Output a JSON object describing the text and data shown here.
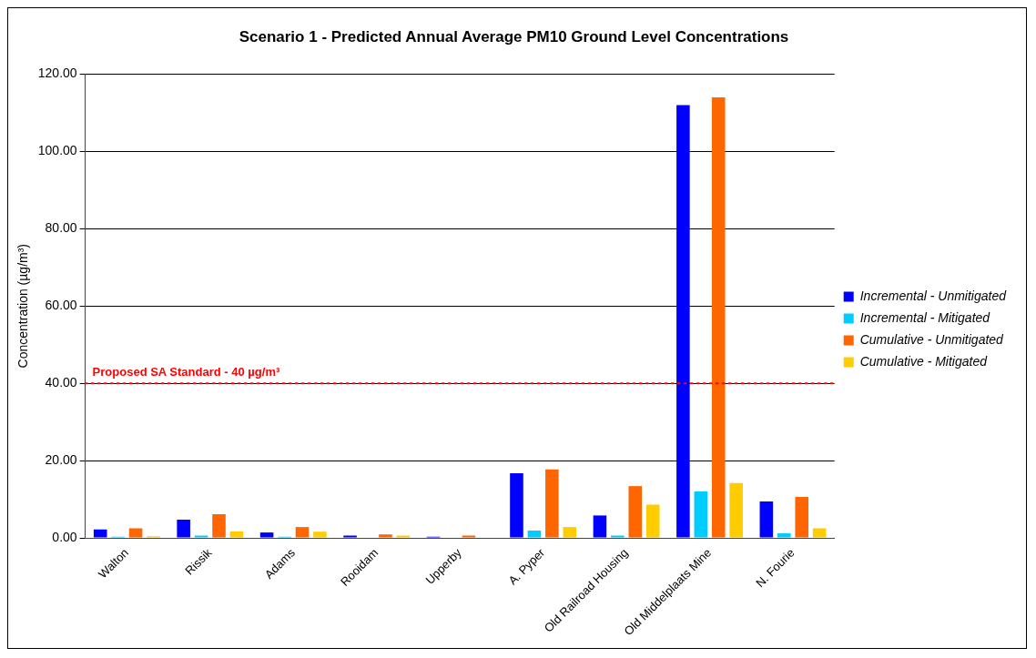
{
  "chart_data": {
    "type": "bar",
    "title": "Scenario 1 - Predicted Annual Average PM10 Ground Level Concentrations",
    "ylabel": "Concentration (µg/m³)",
    "categories": [
      "Walton",
      "Rissik",
      "Adams",
      "Rooidam",
      "Upperby",
      "A. Pyper",
      "Old Railroad Housing",
      "Old Middelplaats Mine",
      "N. Fourie"
    ],
    "series": [
      {
        "name": "Incremental - Unmitigated",
        "color": "#0000ff",
        "values": [
          2.2,
          4.7,
          1.4,
          0.6,
          0.3,
          16.7,
          5.8,
          112,
          9.4
        ]
      },
      {
        "name": "Incremental - Mitigated",
        "color": "#00ccff",
        "values": [
          0.3,
          0.6,
          0.3,
          null,
          null,
          1.9,
          0.6,
          12.0,
          1.2
        ]
      },
      {
        "name": "Cumulative - Unmitigated",
        "color": "#ff6600",
        "values": [
          2.5,
          6.1,
          2.8,
          0.9,
          0.6,
          17.7,
          13.4,
          114,
          10.6
        ]
      },
      {
        "name": "Cumulative - Mitigated",
        "color": "#ffcc00",
        "values": [
          0.4,
          1.7,
          1.6,
          0.6,
          null,
          2.8,
          8.6,
          14.2,
          2.5
        ]
      }
    ],
    "ylim": [
      0,
      120
    ],
    "yticks": [
      {
        "value": 0,
        "label": "0.00"
      },
      {
        "value": 20,
        "label": "20.00"
      },
      {
        "value": 40,
        "label": "40.00"
      },
      {
        "value": 60,
        "label": "60.00"
      },
      {
        "value": 80,
        "label": "80.00"
      },
      {
        "value": 100,
        "label": "100.00"
      },
      {
        "value": 120,
        "label": "120.00"
      }
    ],
    "ref_lines": [
      {
        "axis": "y",
        "value": 40,
        "label": "Proposed SA Standard - 40 µg/m³",
        "color": "#ff0000",
        "line_style": "dotted"
      }
    ],
    "grid": "y",
    "legend": "right"
  }
}
